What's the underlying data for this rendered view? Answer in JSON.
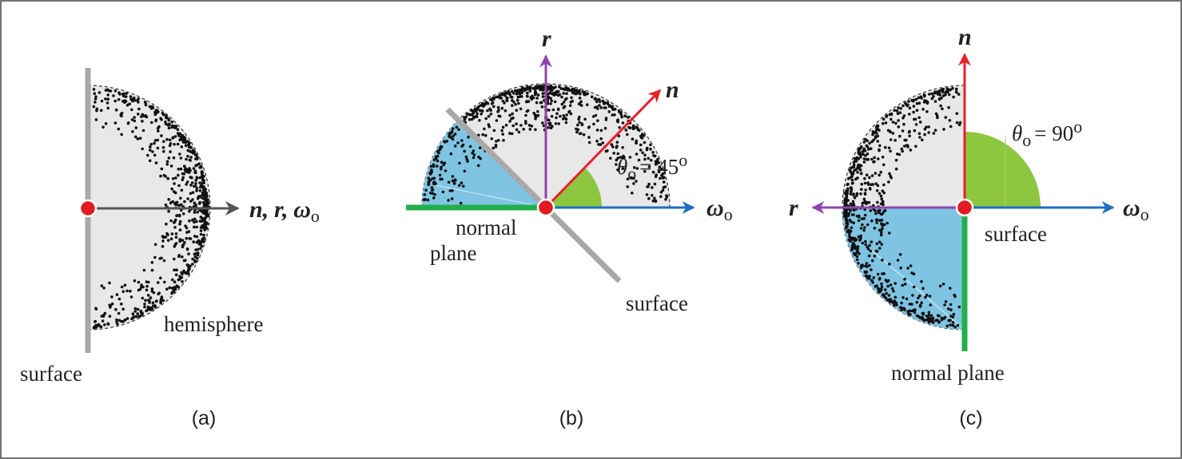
{
  "panels": [
    {
      "caption": "(a)",
      "surface_label": "surface",
      "hemisphere_label": "hemisphere",
      "arrow_labels": [
        "n,",
        "r,",
        "ω"
      ],
      "arrow_subscript": "o"
    },
    {
      "caption": "(b)",
      "normal_plane_label": [
        "normal",
        "plane"
      ],
      "surface_label": "surface",
      "n_label": "n",
      "r_label": "r",
      "omega_label": "ω",
      "omega_subscript": "o",
      "angle_label": {
        "symbol": "θ",
        "subscript": "o",
        "value_text": "= 45",
        "superscript": "o"
      }
    },
    {
      "caption": "(c)",
      "normal_plane_label": "normal plane",
      "surface_label": "surface",
      "n_label": "n",
      "r_label": "r",
      "omega_label": "ω",
      "omega_subscript": "o",
      "angle_label": {
        "symbol": "θ",
        "subscript": "o",
        "value_text": "= 90",
        "superscript": "o"
      }
    }
  ]
}
